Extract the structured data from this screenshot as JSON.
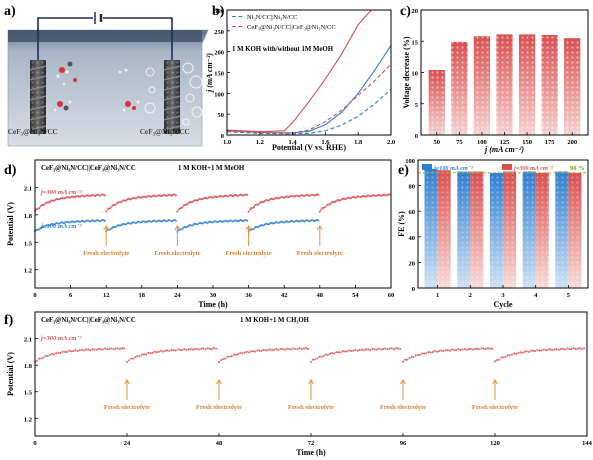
{
  "figure": {
    "panel_labels": [
      "a)",
      "b)",
      "c)",
      "d)",
      "e)",
      "f)"
    ],
    "colors": {
      "red": "#d8504f",
      "red_light": "#f2b4ae",
      "blue": "#2f7fd0",
      "blue_light": "#bcd6ef",
      "orange": "#e0913c",
      "dark_blue_band": "#3f5978",
      "olive": "#9aa81f"
    }
  },
  "panel_a": {
    "electrode_left": "CeF₃@Ni₃N/CC",
    "electrode_right": "CeF₃@Ni₃N/CC",
    "supply_symbol": "—| |—"
  },
  "chart_data": [
    {
      "id": "b",
      "type": "line",
      "annotation": "1 M KOH with/without 1M MeOH",
      "xlabel": "Potential (V vs. RHE)",
      "ylabel": "j (mA cm⁻²)",
      "xlim": [
        1.0,
        2.0
      ],
      "ylim": [
        0,
        300
      ],
      "xticks": [
        "1.0",
        "1.2",
        "1.4",
        "1.6",
        "1.8",
        "2.0"
      ],
      "yticks": [
        "0",
        "50",
        "100",
        "150",
        "200",
        "250",
        "300"
      ],
      "legend_position": "top-left",
      "series": [
        {
          "name": "Ni₃N/CC||Ni₃N/CC",
          "color": "#2f7fd0",
          "style": "solid",
          "x": [
            1.0,
            1.2,
            1.4,
            1.5,
            1.6,
            1.7,
            1.8,
            1.9,
            2.0
          ],
          "y": [
            10,
            6,
            5,
            9,
            25,
            55,
            100,
            155,
            215
          ]
        },
        {
          "name": "Ni₃N/CC||Ni₃N/CC",
          "color": "#2f7fd0",
          "style": "dashed",
          "x": [
            1.0,
            1.2,
            1.4,
            1.5,
            1.6,
            1.7,
            1.8,
            1.9,
            2.0
          ],
          "y": [
            8,
            4,
            3,
            4,
            10,
            24,
            45,
            75,
            110
          ]
        },
        {
          "name": "CeF₃@Ni₃N/CC||CeF₃@Ni₃N/CC",
          "color": "#d8504f",
          "style": "solid",
          "x": [
            1.0,
            1.2,
            1.35,
            1.4,
            1.5,
            1.6,
            1.7,
            1.8,
            1.88
          ],
          "y": [
            12,
            8,
            10,
            30,
            80,
            135,
            195,
            265,
            300
          ]
        },
        {
          "name": "CeF₃@Ni₃N/CC||CeF₃@Ni₃N/CC",
          "color": "#d8504f",
          "style": "dashed",
          "x": [
            1.0,
            1.2,
            1.4,
            1.5,
            1.6,
            1.7,
            1.8,
            1.9,
            2.0
          ],
          "y": [
            10,
            5,
            5,
            12,
            32,
            60,
            95,
            130,
            170
          ]
        }
      ]
    },
    {
      "id": "c",
      "type": "bar",
      "xlabel": "j (mA cm⁻²)",
      "ylabel": "Voltage decrease (%)",
      "ylim": [
        0,
        20
      ],
      "yticks": [
        "0",
        "5",
        "10",
        "15",
        "20"
      ],
      "categories": [
        "50",
        "75",
        "100",
        "125",
        "150",
        "175",
        "200"
      ],
      "values": [
        10.4,
        14.9,
        15.8,
        16.1,
        16.1,
        16.0,
        15.5
      ]
    },
    {
      "id": "d",
      "type": "line",
      "title": "CeF₃@Ni₃N/CC||CeF₃@Ni₃N/CC",
      "subtitle": "1 M KOH+1 M MeOH",
      "xlabel": "Time (h)",
      "ylabel": "Potential (V)",
      "xlim": [
        0,
        60
      ],
      "ylim": [
        1.0,
        2.4
      ],
      "xticks": [
        "0",
        "6",
        "12",
        "18",
        "24",
        "30",
        "36",
        "42",
        "48",
        "54",
        "60"
      ],
      "yticks": [
        "1.2",
        "1.5",
        "1.8",
        "2.1"
      ],
      "arrow_label": "Fresh electrolyte",
      "arrows_x": [
        12,
        24,
        36,
        48
      ],
      "series": [
        {
          "name": "j=300 mA cm⁻²",
          "color": "#d8504f",
          "x_start": 0,
          "x_end": 60,
          "resets": [
            0,
            12,
            24,
            36,
            48
          ],
          "start_v": 1.84,
          "end_v": 2.02
        },
        {
          "name": "j=100 mA cm⁻²",
          "color": "#2f7fd0",
          "x_start": 0,
          "x_end": 48,
          "resets": [
            0,
            12,
            24,
            36
          ],
          "start_v": 1.62,
          "end_v": 1.74
        }
      ]
    },
    {
      "id": "e",
      "type": "bar",
      "xlabel": "Cycle",
      "ylabel": "FE (%)",
      "ylim": [
        0,
        100
      ],
      "yticks": [
        "0",
        "20",
        "40",
        "60",
        "80",
        "100"
      ],
      "categories": [
        "1",
        "2",
        "3",
        "4",
        "5"
      ],
      "annotation": "90 %",
      "series": [
        {
          "name": "j=100 mA cm⁻²",
          "color": "#2f7fd0",
          "values": [
            93,
            91,
            90,
            91,
            91
          ]
        },
        {
          "name": "j=300 mA cm⁻²",
          "color": "#d8504f",
          "values": [
            92,
            91,
            91,
            90,
            90
          ]
        }
      ]
    },
    {
      "id": "f",
      "type": "line",
      "title": "CeF₃@Ni₃N/CC||CeF₃@Ni₃N/CC",
      "subtitle": "1 M KOH+1 M CH₃OH",
      "xlabel": "Time (h)",
      "ylabel": "Potential (V)",
      "xlim": [
        0,
        144
      ],
      "ylim": [
        1.0,
        2.4
      ],
      "xticks": [
        "0",
        "24",
        "48",
        "72",
        "96",
        "120",
        "144"
      ],
      "yticks": [
        "1.2",
        "1.5",
        "1.8",
        "2.1"
      ],
      "arrow_label": "Fresh electrolyte",
      "arrows_x": [
        24,
        48,
        72,
        96,
        120
      ],
      "series": [
        {
          "name": "j=300 mA cm⁻²",
          "color": "#d8504f",
          "x_start": 0,
          "x_end": 144,
          "resets": [
            0,
            24,
            48,
            72,
            96,
            120
          ],
          "start_v": 1.84,
          "end_v": 1.99
        }
      ]
    }
  ]
}
